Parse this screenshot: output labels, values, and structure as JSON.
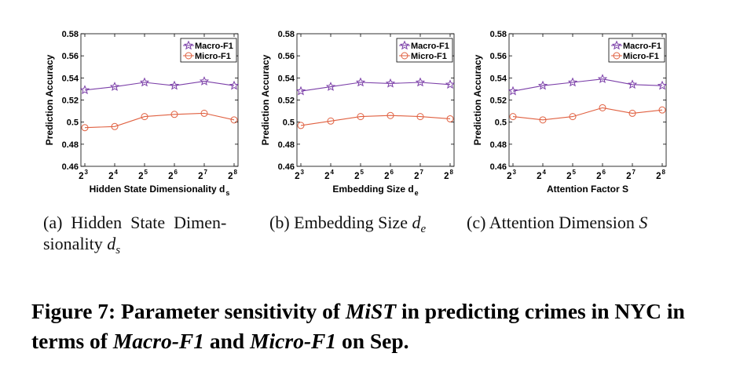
{
  "chart_data": [
    {
      "type": "line",
      "ylabel": "Prediction Accuracy",
      "xlabel": "Hidden State Dimensionality d",
      "xlabel_sub": "s",
      "x_tick_base": "2",
      "x_exponents": [
        "3",
        "4",
        "5",
        "6",
        "7",
        "8"
      ],
      "y_ticks": [
        "0.46",
        "0.48",
        "0.5",
        "0.52",
        "0.54",
        "0.56",
        "0.58"
      ],
      "ylim": [
        0.46,
        0.58
      ],
      "legend_position": "top-right",
      "series": [
        {
          "name": "Macro-F1",
          "marker": "star",
          "color": "#7b3fa8",
          "values": [
            0.529,
            0.532,
            0.536,
            0.533,
            0.537,
            0.533
          ]
        },
        {
          "name": "Micro-F1",
          "marker": "circle",
          "color": "#e06040",
          "values": [
            0.495,
            0.496,
            0.505,
            0.507,
            0.508,
            0.502
          ]
        }
      ]
    },
    {
      "type": "line",
      "ylabel": "Prediction Accuracy",
      "xlabel": "Embedding Size d",
      "xlabel_sub": "e",
      "x_tick_base": "2",
      "x_exponents": [
        "3",
        "4",
        "5",
        "6",
        "7",
        "8"
      ],
      "y_ticks": [
        "0.46",
        "0.48",
        "0.5",
        "0.52",
        "0.54",
        "0.56",
        "0.58"
      ],
      "ylim": [
        0.46,
        0.58
      ],
      "legend_position": "top-right",
      "series": [
        {
          "name": "Macro-F1",
          "marker": "star",
          "color": "#7b3fa8",
          "values": [
            0.528,
            0.532,
            0.536,
            0.535,
            0.536,
            0.534
          ]
        },
        {
          "name": "Micro-F1",
          "marker": "circle",
          "color": "#e06040",
          "values": [
            0.497,
            0.501,
            0.505,
            0.506,
            0.505,
            0.503
          ]
        }
      ]
    },
    {
      "type": "line",
      "ylabel": "Prediction Accuracy",
      "xlabel": "Attention Factor S",
      "xlabel_sub": "",
      "x_tick_base": "2",
      "x_exponents": [
        "3",
        "4",
        "5",
        "6",
        "7",
        "8"
      ],
      "y_ticks": [
        "0.46",
        "0.48",
        "0.5",
        "0.52",
        "0.54",
        "0.56",
        "0.58"
      ],
      "ylim": [
        0.46,
        0.58
      ],
      "legend_position": "top-right",
      "series": [
        {
          "name": "Macro-F1",
          "marker": "star",
          "color": "#7b3fa8",
          "values": [
            0.528,
            0.533,
            0.536,
            0.539,
            0.534,
            0.533
          ]
        },
        {
          "name": "Micro-F1",
          "marker": "circle",
          "color": "#e06040",
          "values": [
            0.505,
            0.502,
            0.505,
            0.513,
            0.508,
            0.511
          ]
        }
      ]
    }
  ],
  "subcaptions": {
    "a_line1": "(a)  Hidden  State  Dimen-",
    "a_line2": "sionality ",
    "a_var": "d",
    "a_sub": "s",
    "b_text": "(b) Embedding Size ",
    "b_var": "d",
    "b_sub": "e",
    "c_text": "(c) Attention Dimension ",
    "c_var": "S"
  },
  "figure_caption": {
    "p1": "Figure 7: Parameter sensitivity of ",
    "em1": "MiST",
    "p2": " in predicting crimes in NYC in terms of ",
    "em2": "Macro-F1",
    "p3": " and ",
    "em3": "Micro-F1",
    "p4": " on Sep."
  }
}
